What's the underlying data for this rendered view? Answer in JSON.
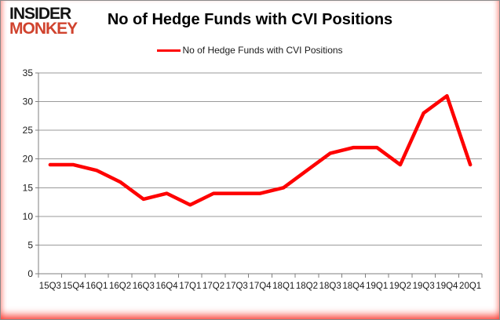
{
  "logo": {
    "line1": "INSIDER",
    "line2": "MONKEY"
  },
  "header": {
    "title": "No of Hedge Funds with CVI Positions"
  },
  "legend": {
    "label": "No of Hedge Funds with CVI Positions"
  },
  "colors": {
    "series_red": "#fe0000",
    "logo_red": "#d0432e",
    "grid": "#9a9a9a",
    "axis": "#7f7f7f",
    "tick_text": "#1a1a1a"
  },
  "chart_data": {
    "type": "line",
    "title": "No of Hedge Funds with CVI Positions",
    "legend_entries": [
      "No of Hedge Funds with CVI Positions"
    ],
    "legend_position": "top",
    "categories": [
      "15Q3",
      "15Q4",
      "16Q1",
      "16Q2",
      "16Q3",
      "16Q4",
      "17Q1",
      "17Q2",
      "17Q3",
      "17Q4",
      "18Q1",
      "18Q2",
      "18Q3",
      "18Q4",
      "19Q1",
      "19Q2",
      "19Q3",
      "19Q4",
      "20Q1"
    ],
    "values": [
      19,
      19,
      18,
      16,
      13,
      14,
      12,
      14,
      14,
      14,
      15,
      18,
      21,
      22,
      22,
      19,
      28,
      31,
      19
    ],
    "xlabel": "",
    "ylabel": "",
    "ylim": [
      0,
      35
    ],
    "ytick_step": 5,
    "yticks": [
      0,
      5,
      10,
      15,
      20,
      25,
      30,
      35
    ],
    "grid": true,
    "line_width": 4.5
  }
}
